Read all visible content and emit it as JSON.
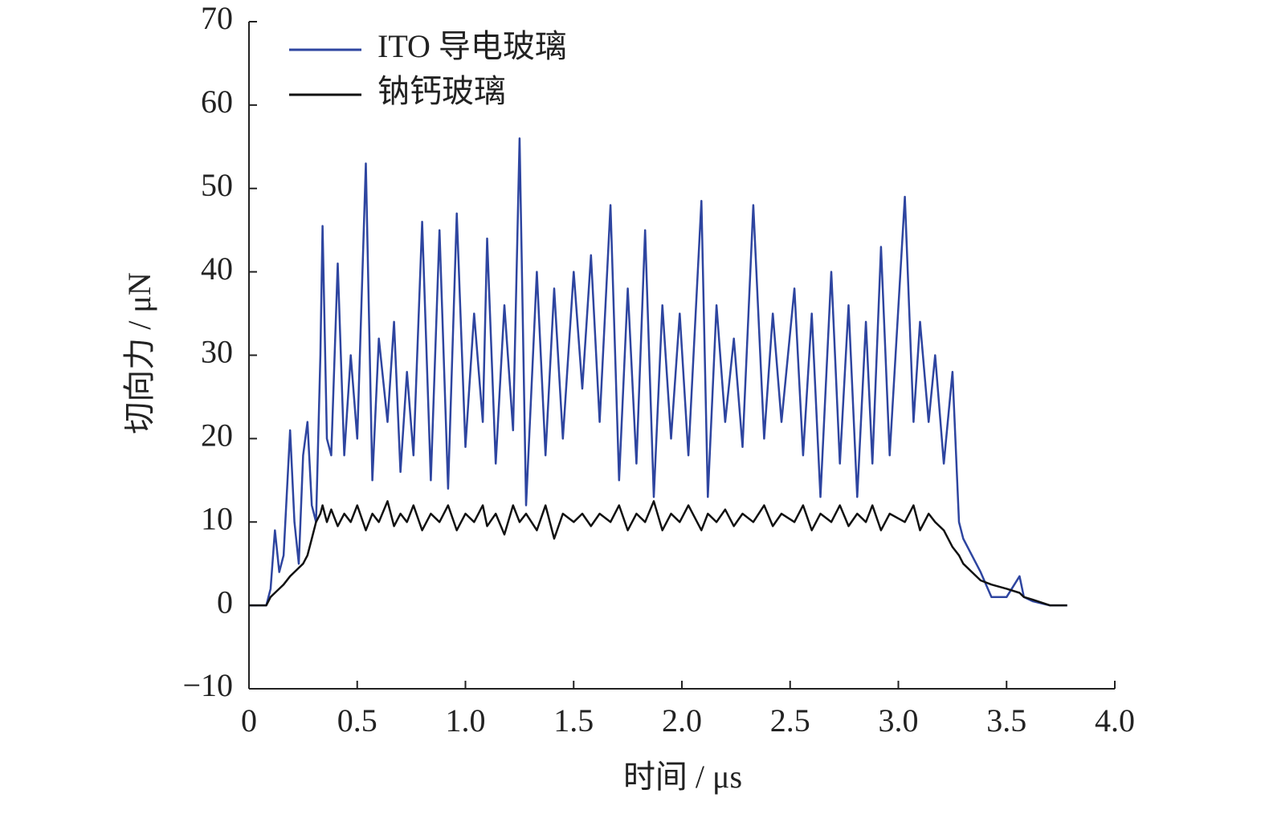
{
  "chart_data": {
    "type": "line",
    "xlabel": "时间 / μs",
    "ylabel": "切向力 / μN",
    "xlim": [
      0,
      4
    ],
    "ylim": [
      -10,
      70
    ],
    "xticks": [
      0,
      0.5,
      {
        "value": 1,
        "label": "1.0"
      },
      1.5,
      {
        "value": 2,
        "label": "2.0"
      },
      2.5,
      {
        "value": 3,
        "label": "3.0"
      },
      3.5,
      {
        "value": 4,
        "label": "4.0"
      }
    ],
    "yticks": [
      {
        "value": -10,
        "label": "−10"
      },
      0,
      10,
      20,
      30,
      40,
      50,
      60,
      70
    ],
    "legend": "upper left",
    "x": [
      0,
      0.08,
      0.1,
      0.12,
      0.14,
      0.16,
      0.19,
      0.21,
      0.23,
      0.25,
      0.27,
      0.29,
      0.31,
      0.33,
      0.34,
      0.36,
      0.38,
      0.41,
      0.44,
      0.47,
      0.5,
      0.54,
      0.57,
      0.6,
      0.64,
      0.67,
      0.7,
      0.73,
      0.76,
      0.8,
      0.84,
      0.88,
      0.92,
      0.96,
      1.0,
      1.04,
      1.08,
      1.1,
      1.14,
      1.18,
      1.22,
      1.25,
      1.28,
      1.33,
      1.37,
      1.41,
      1.45,
      1.5,
      1.54,
      1.58,
      1.62,
      1.67,
      1.71,
      1.75,
      1.79,
      1.83,
      1.87,
      1.91,
      1.95,
      1.99,
      2.03,
      2.09,
      2.12,
      2.16,
      2.2,
      2.24,
      2.28,
      2.33,
      2.38,
      2.42,
      2.46,
      2.52,
      2.56,
      2.6,
      2.64,
      2.69,
      2.73,
      2.77,
      2.81,
      2.85,
      2.88,
      2.92,
      2.96,
      3.03,
      3.07,
      3.1,
      3.14,
      3.17,
      3.21,
      3.25,
      3.28,
      3.3,
      3.34,
      3.38,
      3.43,
      3.5,
      3.56,
      3.58,
      3.62,
      3.7,
      3.78
    ],
    "series": [
      {
        "name": "ITO 导电玻璃",
        "color": "#2e45a0",
        "values": [
          0,
          0,
          2,
          9,
          4,
          6,
          21,
          10,
          5,
          18,
          22,
          12,
          10,
          30,
          45.5,
          20,
          18,
          41,
          18,
          30,
          20,
          53,
          15,
          32,
          22,
          34,
          16,
          28,
          18,
          46,
          15,
          45,
          14,
          47,
          19,
          35,
          22,
          44,
          17,
          36,
          21,
          56,
          12,
          40,
          18,
          38,
          20,
          40,
          26,
          42,
          22,
          48,
          15,
          38,
          17,
          45,
          13,
          36,
          20,
          35,
          18,
          48.5,
          13,
          36,
          22,
          32,
          19,
          48,
          20,
          35,
          22,
          38,
          18,
          35,
          13,
          40,
          17,
          36,
          13,
          34,
          17,
          43,
          18,
          49,
          22,
          34,
          22,
          30,
          17,
          28,
          10,
          8,
          6,
          4,
          1,
          1,
          3.5,
          1,
          0.5,
          0,
          0
        ]
      },
      {
        "name": "钠钙玻璃",
        "color": "#111111",
        "values": [
          0,
          0,
          1,
          1.5,
          2,
          2.5,
          3.5,
          4,
          4.5,
          5,
          6,
          8,
          10,
          11,
          12,
          10,
          11.5,
          9.5,
          11,
          10,
          12,
          9,
          11,
          10,
          12.5,
          9.5,
          11,
          10,
          12,
          9,
          11,
          10,
          12,
          9,
          11,
          10,
          12,
          9.5,
          11,
          8.5,
          12,
          10,
          11,
          9,
          12,
          8,
          11,
          10,
          11,
          9.5,
          11,
          10,
          12,
          9,
          11,
          10,
          12.5,
          9,
          11,
          10,
          12,
          9,
          11,
          10,
          11.5,
          9.5,
          11,
          10,
          12,
          9.5,
          11,
          10,
          12,
          9,
          11,
          10,
          12,
          9.5,
          11,
          10,
          12,
          9,
          11,
          10,
          12,
          9,
          11,
          10,
          9,
          7,
          6,
          5,
          4,
          3,
          2.5,
          2,
          1.5,
          1,
          0.7,
          0,
          0
        ]
      }
    ]
  }
}
